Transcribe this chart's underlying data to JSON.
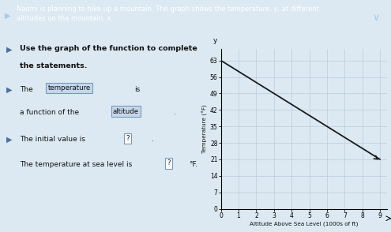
{
  "header_text": "Naomi is planning to hike up a mountain. The graph shows the temperature, y, at different\naltitudes on the mountain, x.",
  "statement1_pre": "The",
  "statement1_box": "temperature",
  "statement1_suf": "is",
  "statement2_pre": "a function of the",
  "statement2_box": "altitude",
  "statement3_pre": "The initial value is",
  "statement3_box": "?",
  "statement4_pre": "The temperature at sea level is",
  "statement4_box": "?",
  "statement4_suf": "°F.",
  "line_x": [
    0,
    9
  ],
  "line_y": [
    63,
    21
  ],
  "x_ticks": [
    0,
    1,
    2,
    3,
    4,
    5,
    6,
    7,
    8,
    9
  ],
  "y_ticks": [
    0,
    7,
    14,
    21,
    28,
    35,
    42,
    49,
    56,
    63
  ],
  "y_axis_label": "Temperature (°F)",
  "x_axis_label": "Altitude Above Sea Level (1000s of ft)",
  "xlim": [
    0,
    9.4
  ],
  "ylim": [
    0,
    68
  ],
  "line_color": "#1a1a1a",
  "grid_color": "#bbccdd",
  "graph_bg": "#dce9f2",
  "panel_bg": "#dce9f2",
  "header_bg": "#4a6fa5",
  "header_fg": "#ffffff",
  "box_fill": "#c5d8ea",
  "box_edge": "#7799bb",
  "white_box": "#ffffff",
  "text_color": "#111111",
  "bold_color": "#111111"
}
